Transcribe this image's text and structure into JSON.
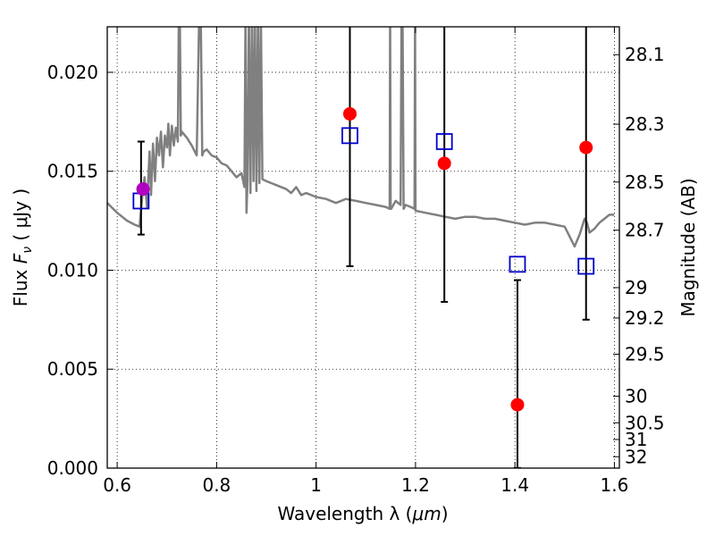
{
  "chart_data": {
    "type": "scatter",
    "title": "",
    "xlabel": "Wavelength  λ (μm)",
    "ylabel": "Flux  F_ν  ( μJy )",
    "ylabel_parts": {
      "prefix": "Flux  ",
      "symbol": "F",
      "subscript": "ν",
      "suffix": "  ( μJy )"
    },
    "xlabel_parts": {
      "prefix": "Wavelength  λ (",
      "unit": "μm",
      "suffix": ")"
    },
    "y2label": "Magnitude (AB)",
    "xlim": [
      0.58,
      1.61
    ],
    "ylim": [
      0.0,
      0.0223
    ],
    "grid": true,
    "legend": "none",
    "x_ticks": [
      0.6,
      0.8,
      1.0,
      1.2,
      1.4,
      1.6
    ],
    "x_tick_labels": [
      "0.6",
      "0.8",
      "1",
      "1.2",
      "1.4",
      "1.6"
    ],
    "y_ticks": [
      0.0,
      0.005,
      0.01,
      0.015,
      0.02
    ],
    "y_tick_labels": [
      "0.000",
      "0.005",
      "0.010",
      "0.015",
      "0.020"
    ],
    "y2_ticks": [
      28.1,
      28.3,
      28.5,
      28.7,
      29,
      29.2,
      29.5,
      30,
      30.5,
      31,
      32
    ],
    "y2_tick_labels": [
      "28.1",
      "28.3",
      "28.5",
      "28.7",
      "29",
      "29.2",
      "29.5",
      "30",
      "30.5",
      "31",
      "32"
    ],
    "series": [
      {
        "kind": "line",
        "color": "#808080",
        "x": [
          0.58,
          0.6,
          0.62,
          0.635,
          0.645,
          0.65,
          0.655,
          0.66,
          0.665,
          0.668,
          0.672,
          0.676,
          0.68,
          0.684,
          0.688,
          0.692,
          0.696,
          0.7,
          0.703,
          0.706,
          0.71,
          0.714,
          0.718,
          0.722,
          0.724,
          0.726,
          0.728,
          0.73,
          0.74,
          0.75,
          0.76,
          0.765,
          0.768,
          0.771,
          0.774,
          0.78,
          0.79,
          0.8,
          0.81,
          0.82,
          0.83,
          0.84,
          0.85,
          0.856,
          0.858,
          0.86,
          0.862,
          0.865,
          0.868,
          0.871,
          0.874,
          0.877,
          0.88,
          0.883,
          0.886,
          0.889,
          0.892,
          0.9,
          0.91,
          0.92,
          0.93,
          0.94,
          0.95,
          0.96,
          0.97,
          0.98,
          1.0,
          1.02,
          1.04,
          1.06,
          1.08,
          1.1,
          1.12,
          1.14,
          1.148,
          1.149,
          1.15,
          1.151,
          1.16,
          1.17,
          1.172,
          1.174,
          1.176,
          1.18,
          1.19,
          1.198,
          1.199,
          1.2,
          1.201,
          1.22,
          1.24,
          1.26,
          1.28,
          1.3,
          1.32,
          1.34,
          1.36,
          1.38,
          1.4,
          1.42,
          1.44,
          1.46,
          1.48,
          1.5,
          1.52,
          1.53,
          1.54,
          1.545,
          1.55,
          1.56,
          1.57,
          1.58,
          1.59,
          1.6
        ],
        "y": [
          0.0134,
          0.0129,
          0.0125,
          0.0123,
          0.0122,
          0.0136,
          0.0147,
          0.0132,
          0.016,
          0.0138,
          0.0164,
          0.0145,
          0.0167,
          0.0158,
          0.017,
          0.0152,
          0.0168,
          0.0162,
          0.0174,
          0.0158,
          0.0173,
          0.0163,
          0.0172,
          0.0165,
          0.023,
          0.023,
          0.0168,
          0.017,
          0.0167,
          0.0163,
          0.0158,
          0.023,
          0.023,
          0.0158,
          0.016,
          0.0161,
          0.0158,
          0.0157,
          0.0154,
          0.0153,
          0.015,
          0.0147,
          0.0149,
          0.0142,
          0.023,
          0.0129,
          0.0145,
          0.023,
          0.0139,
          0.023,
          0.0145,
          0.023,
          0.014,
          0.023,
          0.0144,
          0.023,
          0.0146,
          0.0145,
          0.0144,
          0.0143,
          0.0142,
          0.0141,
          0.0139,
          0.0142,
          0.0138,
          0.0139,
          0.0137,
          0.0136,
          0.0134,
          0.0136,
          0.0135,
          0.0134,
          0.0133,
          0.0132,
          0.0131,
          0.023,
          0.0132,
          0.0131,
          0.0135,
          0.0133,
          0.023,
          0.023,
          0.0131,
          0.0133,
          0.0132,
          0.0131,
          0.023,
          0.013,
          0.013,
          0.0129,
          0.0128,
          0.0127,
          0.0126,
          0.0127,
          0.0127,
          0.0126,
          0.0126,
          0.0125,
          0.0124,
          0.0123,
          0.0124,
          0.0124,
          0.0123,
          0.0122,
          0.0112,
          0.0118,
          0.0126,
          0.0124,
          0.0119,
          0.0121,
          0.0124,
          0.0126,
          0.0128,
          0.0128
        ]
      },
      {
        "kind": "errorbar",
        "color": "#000000",
        "x": [
          0.648,
          1.068,
          1.258,
          1.405,
          1.543
        ],
        "lower": [
          0.0118,
          0.0102,
          0.0084,
          0.0,
          0.0075
        ],
        "upper": [
          0.0165,
          0.023,
          0.023,
          0.0095,
          0.023
        ]
      },
      {
        "kind": "scatter",
        "marker": "square",
        "color": "#0000cc",
        "x": [
          0.648,
          1.068,
          1.258,
          1.405,
          1.543
        ],
        "y": [
          0.0135,
          0.0168,
          0.0165,
          0.0103,
          0.0102
        ]
      },
      {
        "kind": "scatter",
        "marker": "circle",
        "color": "#ff0000",
        "x": [
          1.068,
          1.258,
          1.405,
          1.543
        ],
        "y": [
          0.0179,
          0.0154,
          0.0032,
          0.0162
        ]
      },
      {
        "kind": "scatter",
        "marker": "circle",
        "color": "#b000c0",
        "x": [
          0.652
        ],
        "y": [
          0.0141
        ]
      }
    ]
  }
}
